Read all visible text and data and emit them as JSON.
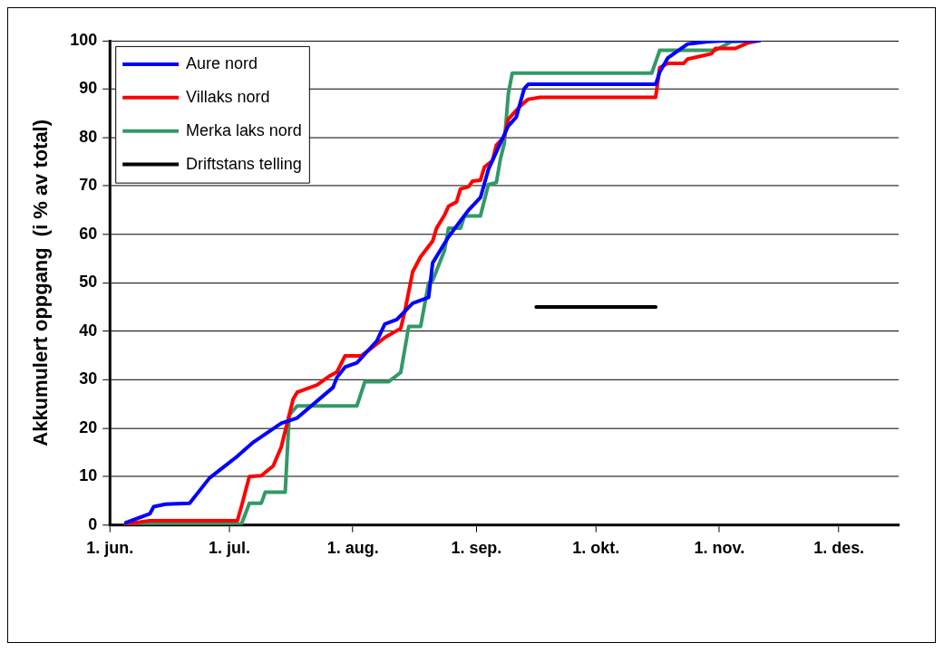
{
  "chart_data": {
    "type": "line",
    "ylabel": "Akkumulert oppgang  (i % av total)",
    "xlim": [
      "--06-01",
      "--12-16"
    ],
    "xticks": [
      {
        "value": "--06-01",
        "label": "1. jun."
      },
      {
        "value": "--07-01",
        "label": "1. jul."
      },
      {
        "value": "--08-01",
        "label": "1. aug."
      },
      {
        "value": "--09-01",
        "label": "1. sep."
      },
      {
        "value": "--10-01",
        "label": "1. okt."
      },
      {
        "value": "--11-01",
        "label": "1. nov."
      },
      {
        "value": "--12-01",
        "label": "1. des."
      }
    ],
    "ylim": [
      0,
      100
    ],
    "yticks": [
      0,
      10,
      20,
      30,
      40,
      50,
      60,
      70,
      80,
      90,
      100
    ],
    "grid": "y",
    "legend": "top left",
    "marker": "none",
    "line_style": "solid",
    "series": [
      {
        "name": "Aure nord",
        "color": "#0000ff",
        "x": [
          "--06-05",
          "--06-11",
          "--06-12",
          "--06-15",
          "--06-21",
          "--06-26",
          "--07-03",
          "--07-07",
          "--07-14",
          "--07-18",
          "--07-27",
          "--07-28",
          "--07-30",
          "--08-02",
          "--08-07",
          "--08-09",
          "--08-12",
          "--08-16",
          "--08-20",
          "--08-21",
          "--08-25",
          "--08-30",
          "--09-02",
          "--09-04",
          "--09-06",
          "--09-09",
          "--09-11",
          "--09-13",
          "--09-14",
          "--10-16",
          "--10-17",
          "--10-19",
          "--10-24",
          "--10-29",
          "--11-02",
          "--11-11"
        ],
        "values": [
          0.5,
          2.3,
          3.8,
          4.3,
          4.5,
          9.7,
          14.2,
          17.1,
          21,
          22.1,
          28.4,
          30.5,
          32.6,
          33.5,
          38,
          41.5,
          42.4,
          45.8,
          47,
          54.1,
          59.5,
          65,
          67.6,
          73.4,
          77,
          82.4,
          84.2,
          90.1,
          91,
          91,
          93.5,
          96.4,
          99.3,
          99.8,
          100,
          100
        ]
      },
      {
        "name": "Villaks nord",
        "color": "#ff0000",
        "x": [
          "--06-05",
          "--06-11",
          "--07-03",
          "--07-04",
          "--07-06",
          "--07-09",
          "--07-12",
          "--07-14",
          "--07-17",
          "--07-18",
          "--07-23",
          "--07-26",
          "--07-28",
          "--07-30",
          "--08-03",
          "--08-05",
          "--08-09",
          "--08-13",
          "--08-14",
          "--08-16",
          "--08-18",
          "--08-21",
          "--08-22",
          "--08-24",
          "--08-25",
          "--08-27",
          "--08-28",
          "--08-30",
          "--08-31",
          "--09-02",
          "--09-03",
          "--09-05",
          "--09-06",
          "--09-08",
          "--09-09",
          "--09-12",
          "--09-14",
          "--09-17",
          "--10-16",
          "--10-17",
          "--10-19",
          "--10-23",
          "--10-24",
          "--10-30",
          "--10-31",
          "--11-05",
          "--11-08",
          "--11-11"
        ],
        "values": [
          0.2,
          0.9,
          0.9,
          3.8,
          10,
          10.2,
          12.2,
          16.1,
          26,
          27.4,
          28.9,
          30.7,
          31.6,
          34.9,
          34.9,
          36.1,
          38.7,
          40.6,
          44,
          52.3,
          55.4,
          58.6,
          61.3,
          64,
          65.8,
          66.7,
          69.4,
          69.8,
          71,
          71.2,
          73.9,
          75.2,
          78.4,
          80.2,
          83.8,
          86.5,
          87.9,
          88.3,
          88.3,
          94.4,
          95.3,
          95.3,
          96.2,
          97.3,
          98.4,
          98.4,
          99.5,
          100
        ]
      },
      {
        "name": "Merka laks nord",
        "color": "#339966",
        "x": [
          "--06-05",
          "--07-04",
          "--07-05",
          "--07-06",
          "--07-09",
          "--07-10",
          "--07-15",
          "--07-16",
          "--07-18",
          "--08-02",
          "--08-04",
          "--08-10",
          "--08-13",
          "--08-14",
          "--08-15",
          "--08-18",
          "--08-20",
          "--08-21",
          "--08-24",
          "--08-25",
          "--08-28",
          "--08-29",
          "--09-02",
          "--09-04",
          "--09-06",
          "--09-07",
          "--09-08",
          "--09-09",
          "--09-10",
          "--10-15",
          "--10-17",
          "--10-31",
          "--11-04",
          "--11-11"
        ],
        "values": [
          0.2,
          0.2,
          2.3,
          4.5,
          4.5,
          6.8,
          6.8,
          22.7,
          24.6,
          24.6,
          29.6,
          29.6,
          31.5,
          36.2,
          41,
          41,
          50,
          50.5,
          56.7,
          61.3,
          61.3,
          63.8,
          63.8,
          70.3,
          70.7,
          75.5,
          78.8,
          89,
          93.3,
          93.3,
          98,
          98,
          99.8,
          100
        ]
      },
      {
        "name": "Driftstans telling",
        "color": "#000000",
        "x": [
          "--09-16",
          "--10-16"
        ],
        "values": [
          45,
          45
        ]
      }
    ]
  }
}
